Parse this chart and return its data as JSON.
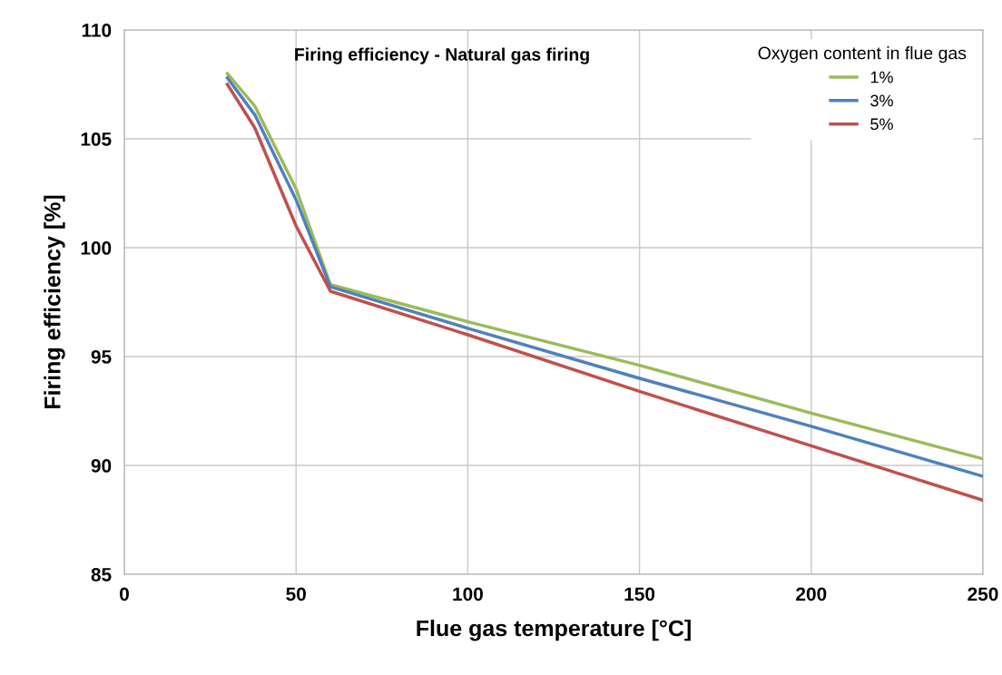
{
  "chart_data": {
    "type": "line",
    "title": "Firing efficiency - Natural gas firing",
    "xlabel": "Flue gas temperature [°C]",
    "ylabel": "Firing efficiency [%]",
    "legend_title": "Oxygen content in flue gas",
    "x": [
      30,
      38,
      50,
      60,
      100,
      150,
      200,
      250
    ],
    "series": [
      {
        "name": "1%",
        "color": "#9bbb59",
        "values": [
          108.0,
          106.5,
          102.7,
          98.3,
          96.6,
          94.6,
          92.4,
          90.3
        ]
      },
      {
        "name": "3%",
        "color": "#4f81bd",
        "values": [
          107.8,
          106.1,
          102.2,
          98.2,
          96.3,
          94.0,
          91.8,
          89.5
        ]
      },
      {
        "name": "5%",
        "color": "#c0504d",
        "values": [
          107.5,
          105.5,
          101.0,
          98.0,
          96.0,
          93.4,
          90.9,
          88.4
        ]
      }
    ],
    "xlim": [
      0,
      250
    ],
    "xticks": [
      0,
      50,
      100,
      150,
      200,
      250
    ],
    "ylim": [
      85,
      110
    ],
    "yticks": [
      85,
      90,
      95,
      100,
      105,
      110
    ],
    "grid": true,
    "legend": "top right",
    "marker": "none",
    "line_style": "solid"
  }
}
